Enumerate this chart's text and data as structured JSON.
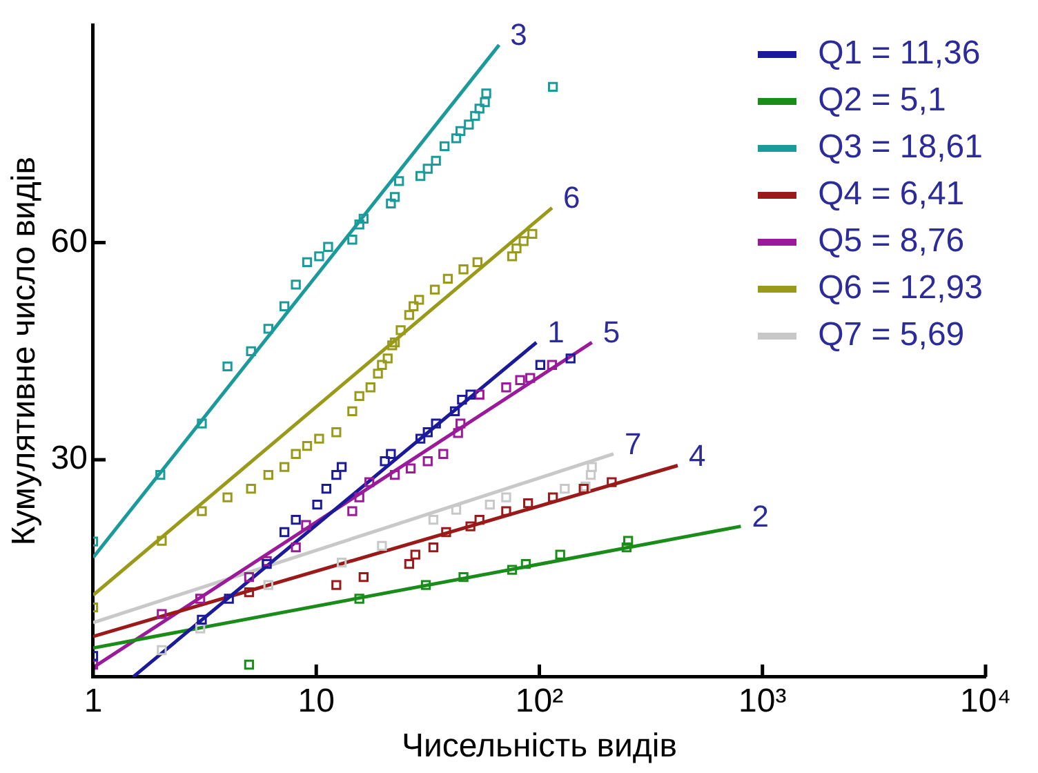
{
  "chart_data": {
    "type": "line",
    "xlabel": "Чисельність видів",
    "ylabel": "Кумулятивне число видів",
    "log": "x",
    "grid": false,
    "legend": "top right",
    "xlim": [
      1,
      10000
    ],
    "xticks": [
      1,
      10,
      {
        "value": 100,
        "label": "10²"
      },
      {
        "value": 1000,
        "label": "10³"
      },
      {
        "value": 10000,
        "label": "10⁴"
      }
    ],
    "ylim": [
      0,
      90
    ],
    "yticks": [
      30,
      60
    ],
    "series": [
      {
        "name": "Q1 = 11,36",
        "type": "line",
        "marker": "none",
        "color": "#1a1a9a",
        "x": [
          1.51,
          97
        ],
        "values": [
          0,
          46.2
        ]
      },
      {
        "name": "Q2 = 5,1",
        "type": "line",
        "marker": "none",
        "color": "#1a8c1a",
        "x": [
          1,
          800
        ],
        "values": [
          4.0,
          20.8
        ]
      },
      {
        "name": "Q3 = 18,61",
        "type": "line",
        "marker": "none",
        "color": "#1a9a9a",
        "x": [
          1,
          66
        ],
        "values": [
          16.5,
          87.3
        ]
      },
      {
        "name": "Q4 = 6,41",
        "type": "line",
        "marker": "none",
        "color": "#9a1a1a",
        "x": [
          1,
          417
        ],
        "values": [
          5.6,
          29.2
        ]
      },
      {
        "name": "Q5 = 8,76",
        "type": "line",
        "marker": "none",
        "color": "#9a1a9a",
        "x": [
          1,
          172
        ],
        "values": [
          1.3,
          46.2
        ]
      },
      {
        "name": "Q6 = 12,93",
        "type": "line",
        "marker": "none",
        "color": "#9a9a1a",
        "x": [
          1,
          114
        ],
        "values": [
          11.3,
          64.8
        ]
      },
      {
        "name": "Q7 = 5,69",
        "type": "line",
        "marker": "none",
        "color": "#c8c8c8",
        "x": [
          1,
          215
        ],
        "values": [
          7.5,
          30.8
        ]
      },
      {
        "type": "scatter",
        "marker": "square",
        "color": "#1a1a9a",
        "x": [
          1,
          3.07,
          4.06,
          6.0,
          7.2,
          8.1,
          10.1,
          11.1,
          12.3,
          13.0,
          20.3,
          21.6,
          29.3,
          31.6,
          34.4,
          41.8,
          45.0,
          49.1,
          101,
          138
        ],
        "values": [
          2.9,
          7.9,
          10.8,
          15.6,
          20.0,
          21.7,
          23.8,
          26.0,
          27.9,
          29.0,
          29.8,
          30.8,
          32.9,
          33.8,
          35.0,
          36.7,
          38.3,
          39.0,
          43.1,
          44.0
        ]
      },
      {
        "type": "scatter",
        "marker": "square",
        "color": "#1a8c1a",
        "x": [
          5.0,
          15.6,
          31,
          45.7,
          75.5,
          87,
          124,
          246,
          250
        ],
        "values": [
          1.7,
          10.8,
          12.7,
          13.8,
          14.8,
          15.6,
          16.9,
          17.9,
          18.8
        ]
      },
      {
        "type": "scatter",
        "marker": "square",
        "color": "#1a9a9a",
        "x": [
          1,
          2,
          3.07,
          4.0,
          5.1,
          6.1,
          7.2,
          8.1,
          9.1,
          10.3,
          11.3,
          14.5,
          15.6,
          16.3,
          21.6,
          22.5,
          23.5,
          29.3,
          31.6,
          34.4,
          37.6,
          42.4,
          44.3,
          48.3,
          51.5,
          53.9,
          57.0,
          57.8,
          115
        ],
        "values": [
          18.7,
          27.9,
          35.0,
          42.9,
          45.0,
          48.1,
          51.2,
          54.2,
          57.3,
          58.1,
          59.4,
          60.4,
          62.5,
          63.3,
          65.4,
          66.3,
          68.5,
          69.2,
          70.2,
          71.3,
          73.3,
          74.4,
          75.4,
          76.3,
          77.5,
          78.5,
          79.4,
          80.6,
          81.5
        ]
      },
      {
        "type": "scatter",
        "marker": "square",
        "color": "#9a1a1a",
        "x": [
          5.0,
          12.3,
          16.3,
          26.1,
          27.8,
          33.5,
          38.2,
          49.1,
          53.9,
          71,
          89,
          115,
          158,
          211
        ],
        "values": [
          11.7,
          12.7,
          13.8,
          15.6,
          16.9,
          17.9,
          20.0,
          20.8,
          21.7,
          22.9,
          24.0,
          24.8,
          26.0,
          26.9
        ]
      },
      {
        "type": "scatter",
        "marker": "square",
        "color": "#9a1a9a",
        "x": [
          1,
          2.03,
          3.02,
          5.0,
          6.0,
          8.1,
          9.0,
          14.5,
          15.6,
          17.3,
          22.5,
          26.5,
          31.6,
          37.1,
          43.2,
          44.3,
          53.9,
          71,
          82,
          91,
          114
        ],
        "values": [
          1.7,
          8.7,
          10.8,
          13.8,
          16.0,
          17.9,
          21.0,
          22.9,
          24.8,
          26.9,
          27.9,
          28.8,
          29.8,
          30.8,
          33.7,
          35.0,
          39.0,
          40.0,
          41.0,
          41.3,
          43.1
        ]
      },
      {
        "type": "scatter",
        "marker": "square",
        "color": "#9a9a1a",
        "x": [
          1,
          2.03,
          3.07,
          4.0,
          5.1,
          6.1,
          7.2,
          8.1,
          9.1,
          10.3,
          12.3,
          14.5,
          15.6,
          17.5,
          18.9,
          19.7,
          20.9,
          21.9,
          22.5,
          23.9,
          26.1,
          27.3,
          28.9,
          34.0,
          38.9,
          45.7,
          52.8,
          75.5,
          79,
          85,
          93
        ],
        "values": [
          9.6,
          18.8,
          22.9,
          24.8,
          26.0,
          27.9,
          29.0,
          30.8,
          31.9,
          32.9,
          33.8,
          36.7,
          38.8,
          40.0,
          41.9,
          43.1,
          44.0,
          45.8,
          46.2,
          47.9,
          50.0,
          51.2,
          52.1,
          53.5,
          55.0,
          56.3,
          57.3,
          58.1,
          59.2,
          60.2,
          61.2
        ]
      },
      {
        "type": "scatter",
        "marker": "square",
        "color": "#c8c8c8",
        "x": [
          2.03,
          3.02,
          6.1,
          13,
          19.7,
          33.5,
          42.4,
          60,
          71,
          130,
          161,
          170,
          172
        ],
        "values": [
          3.7,
          6.7,
          12.7,
          15.8,
          18.1,
          21.7,
          23.1,
          23.8,
          24.8,
          26.0,
          26.3,
          27.9,
          29.0
        ]
      }
    ],
    "annotations": [
      {
        "text": "1",
        "x": 97,
        "y": 46.2
      },
      {
        "text": "2",
        "x": 800,
        "y": 20.8
      },
      {
        "text": "3",
        "x": 66,
        "y": 87.3
      },
      {
        "text": "4",
        "x": 417,
        "y": 29.2
      },
      {
        "text": "5",
        "x": 172,
        "y": 46.2
      },
      {
        "text": "6",
        "x": 114,
        "y": 64.8
      },
      {
        "text": "7",
        "x": 215,
        "y": 30.8
      }
    ]
  }
}
